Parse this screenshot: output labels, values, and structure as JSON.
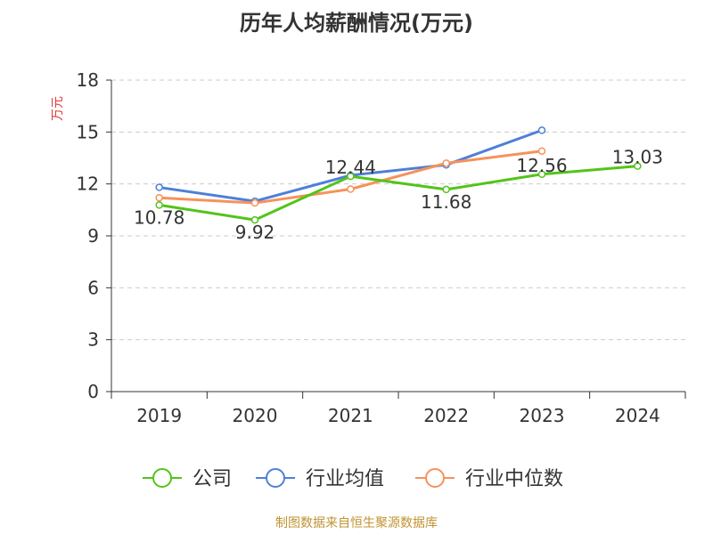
{
  "chart_data": {
    "type": "line",
    "title": "历年人均薪酬情况(万元)",
    "ylabel": "万元",
    "xlabel": "",
    "categories": [
      "2019",
      "2020",
      "2021",
      "2022",
      "2023",
      "2024"
    ],
    "ylim": [
      0,
      18
    ],
    "yticks": [
      0,
      3,
      6,
      9,
      12,
      15,
      18
    ],
    "grid": "horizontal-dashed",
    "legend_position": "bottom",
    "series": [
      {
        "name": "公司",
        "color": "#52c41a",
        "values": [
          10.78,
          9.92,
          12.44,
          11.68,
          12.56,
          13.03
        ],
        "labels": [
          "10.78",
          "9.92",
          "12.44",
          "11.68",
          "12.56",
          "13.03"
        ]
      },
      {
        "name": "行业均值",
        "color": "#4e7fd8",
        "values": [
          11.8,
          11.0,
          12.5,
          13.1,
          15.1,
          null
        ]
      },
      {
        "name": "行业中位数",
        "color": "#f5925b",
        "values": [
          11.2,
          10.9,
          11.7,
          13.2,
          13.9,
          null
        ]
      }
    ]
  },
  "source_note": "制图数据来自恒生聚源数据库"
}
